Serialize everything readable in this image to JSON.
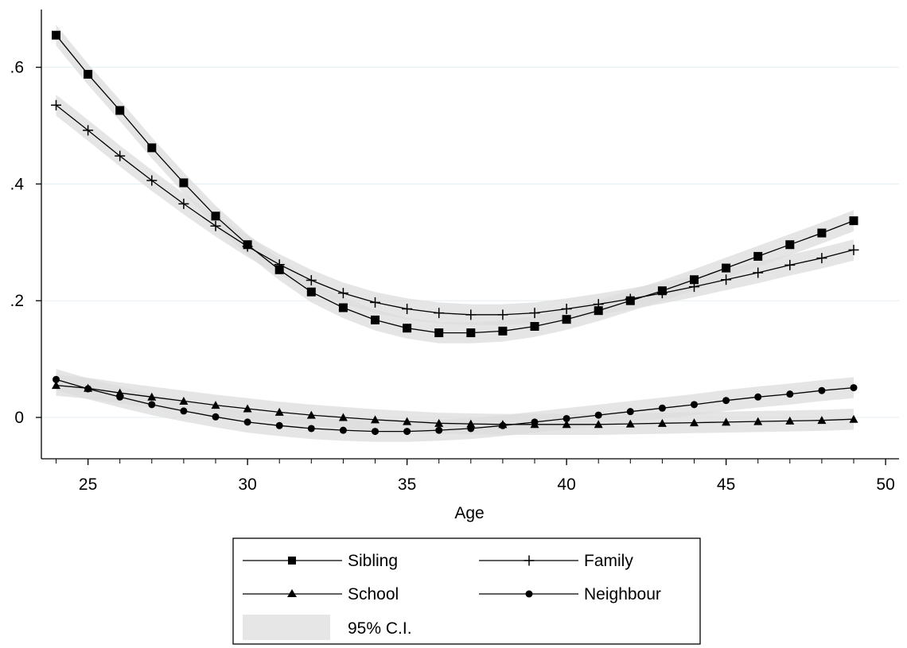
{
  "chart_data": {
    "type": "line",
    "title": "",
    "xlabel": "Age",
    "ylabel": "",
    "xlim": [
      24,
      49
    ],
    "ylim": [
      -0.07,
      0.71
    ],
    "x_ticks": [
      25,
      30,
      35,
      40,
      45,
      50
    ],
    "x_tick_labels": [
      "25",
      "30",
      "35",
      "40",
      "45",
      "50"
    ],
    "y_ticks": [
      0,
      0.2,
      0.4,
      0.6
    ],
    "y_tick_labels": [
      "0",
      ".2",
      ".4",
      ".6"
    ],
    "grid": true,
    "legend_position": "bottom",
    "x": [
      24,
      25,
      26,
      27,
      28,
      29,
      30,
      31,
      32,
      33,
      34,
      35,
      36,
      37,
      38,
      39,
      40,
      41,
      42,
      43,
      44,
      45,
      46,
      47,
      48,
      49
    ],
    "series": [
      {
        "name": "Sibling",
        "marker": "square",
        "ci_halfwidth": 0.018,
        "values": [
          0.655,
          0.588,
          0.526,
          0.462,
          0.402,
          0.345,
          0.296,
          0.253,
          0.215,
          0.188,
          0.167,
          0.153,
          0.145,
          0.145,
          0.148,
          0.156,
          0.168,
          0.183,
          0.2,
          0.217,
          0.236,
          0.256,
          0.276,
          0.296,
          0.316,
          0.337
        ]
      },
      {
        "name": "Family",
        "marker": "plus",
        "ci_halfwidth": 0.018,
        "values": [
          0.535,
          0.492,
          0.448,
          0.406,
          0.366,
          0.328,
          0.293,
          0.262,
          0.235,
          0.213,
          0.197,
          0.186,
          0.179,
          0.176,
          0.176,
          0.179,
          0.186,
          0.194,
          0.203,
          0.213,
          0.224,
          0.236,
          0.248,
          0.261,
          0.273,
          0.287
        ]
      },
      {
        "name": "School",
        "marker": "triangle",
        "ci_halfwidth": 0.018,
        "values": [
          0.055,
          0.05,
          0.042,
          0.035,
          0.028,
          0.021,
          0.015,
          0.009,
          0.004,
          0.0,
          -0.004,
          -0.007,
          -0.01,
          -0.011,
          -0.012,
          -0.012,
          -0.012,
          -0.012,
          -0.011,
          -0.01,
          -0.009,
          -0.008,
          -0.007,
          -0.006,
          -0.005,
          -0.003
        ]
      },
      {
        "name": "Neighbour",
        "marker": "circle",
        "ci_halfwidth": 0.018,
        "values": [
          0.065,
          0.049,
          0.035,
          0.022,
          0.011,
          0.001,
          -0.008,
          -0.014,
          -0.019,
          -0.022,
          -0.024,
          -0.024,
          -0.022,
          -0.019,
          -0.014,
          -0.008,
          -0.002,
          0.004,
          0.01,
          0.016,
          0.022,
          0.029,
          0.035,
          0.04,
          0.046,
          0.051
        ]
      }
    ],
    "legend": {
      "entries": [
        "Sibling",
        "Family",
        "School",
        "Neighbour",
        "95% C.I."
      ]
    }
  }
}
